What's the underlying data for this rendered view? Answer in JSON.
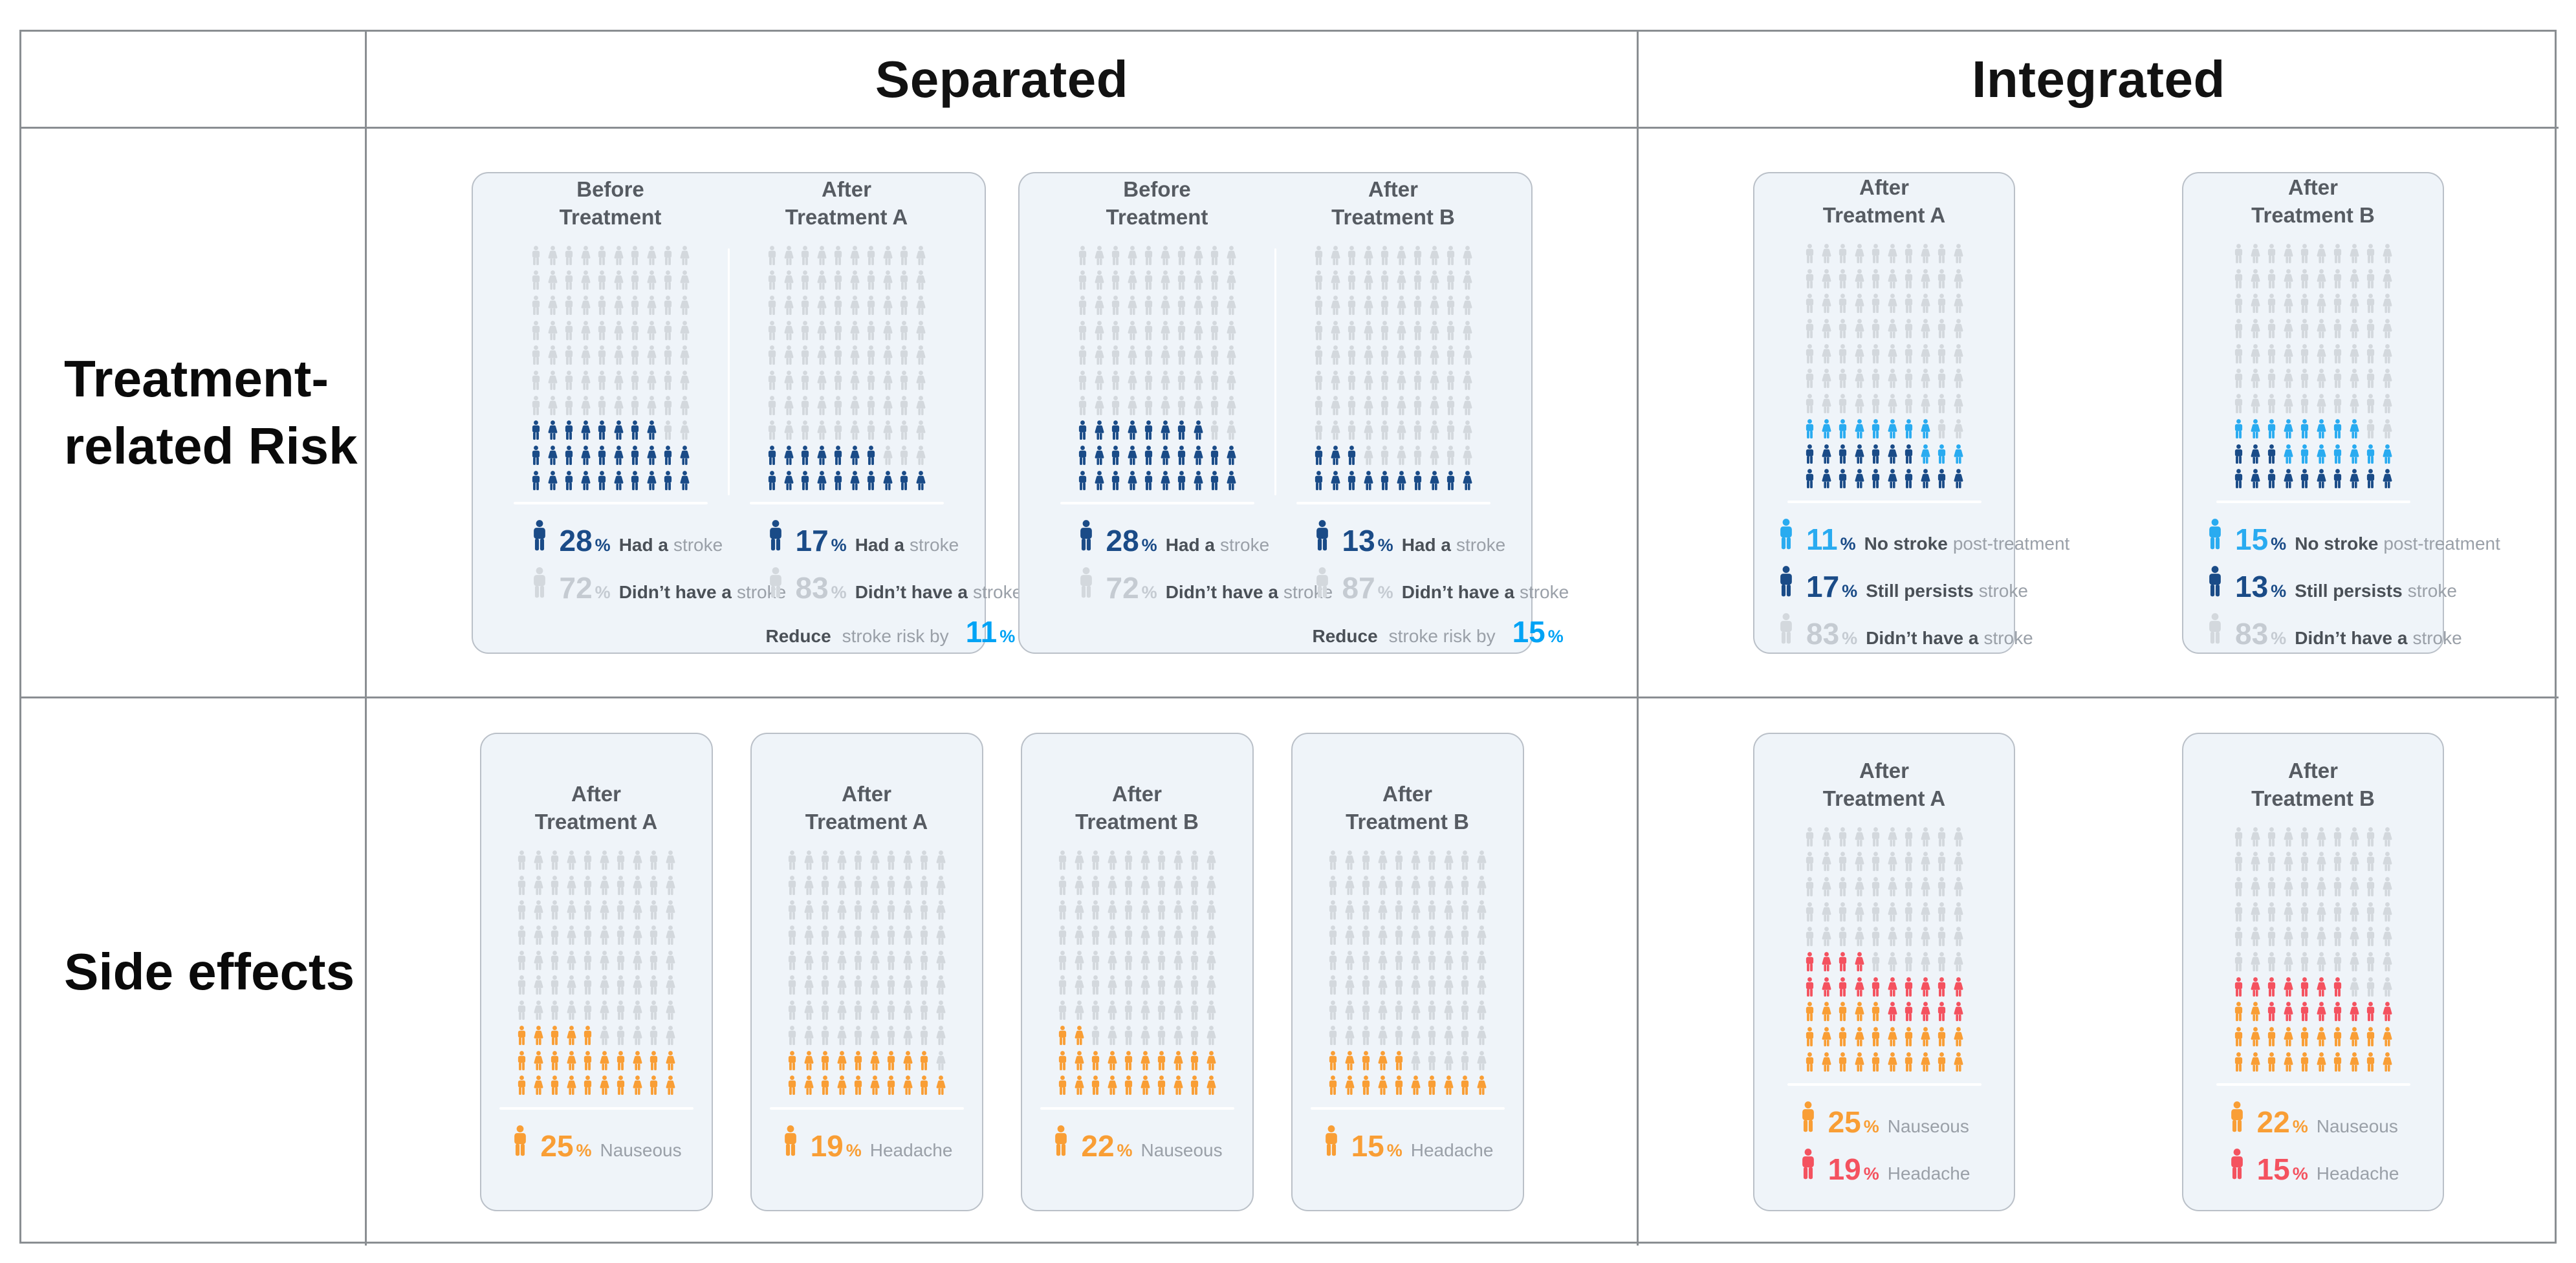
{
  "colors": {
    "navy": "#1A4B87",
    "lightblue": "#29ABF0",
    "cyan": "#00A3F5",
    "gray": "#D3D8DD",
    "grayNum": "#C5CBD2",
    "orange": "#F99E35",
    "red": "#F4525F",
    "boldText": "#4A5057",
    "lightText": "#9AA0A8",
    "panelTitle": "#565B62",
    "cardBg": "#EFF4F9",
    "cardBorder": "#BAC0C8",
    "tableLine": "#8A8E92"
  },
  "table": {
    "header": {
      "separated": "Separated",
      "integrated": "Integrated"
    },
    "row_labels": {
      "risk": [
        "Treatment-",
        "related Risk"
      ],
      "side": [
        "Side effects"
      ]
    }
  },
  "cards": {
    "risk_separated": [
      {
        "panels": [
          {
            "title": [
              "Before",
              "Treatment"
            ],
            "segments": [
              {
                "count": 28,
                "color": "navy"
              },
              {
                "count": 72,
                "color": "gray"
              }
            ],
            "legend": [
              {
                "icon_color": "navy",
                "num": "28",
                "num_color": "navy",
                "pct": "%",
                "pct_color": "navy",
                "bold": "Had a",
                "rest": "stroke"
              },
              {
                "icon_color": "gray",
                "num": "72",
                "num_color": "grayNum",
                "pct": "%",
                "pct_color": "grayNum",
                "bold": "Didn’t have a",
                "rest": "stroke"
              }
            ]
          },
          {
            "title": [
              "After",
              "Treatment A"
            ],
            "segments": [
              {
                "count": 17,
                "color": "navy"
              },
              {
                "count": 83,
                "color": "gray"
              }
            ],
            "legend": [
              {
                "icon_color": "navy",
                "num": "17",
                "num_color": "navy",
                "pct": "%",
                "pct_color": "navy",
                "bold": "Had a",
                "rest": "stroke"
              },
              {
                "icon_color": "gray",
                "num": "83",
                "num_color": "grayNum",
                "pct": "%",
                "pct_color": "grayNum",
                "bold": "Didn’t have a",
                "rest": "stroke"
              },
              {
                "reduce": true,
                "bold": "Reduce",
                "mid": "stroke risk by",
                "num": "11",
                "num_color": "cyan",
                "pct": "%",
                "pct_color": "cyan"
              }
            ]
          }
        ]
      },
      {
        "panels": [
          {
            "title": [
              "Before",
              "Treatment"
            ],
            "segments": [
              {
                "count": 28,
                "color": "navy"
              },
              {
                "count": 72,
                "color": "gray"
              }
            ],
            "legend": [
              {
                "icon_color": "navy",
                "num": "28",
                "num_color": "navy",
                "pct": "%",
                "pct_color": "navy",
                "bold": "Had a",
                "rest": "stroke"
              },
              {
                "icon_color": "gray",
                "num": "72",
                "num_color": "grayNum",
                "pct": "%",
                "pct_color": "grayNum",
                "bold": "Didn’t have a",
                "rest": "stroke"
              }
            ]
          },
          {
            "title": [
              "After",
              "Treatment B"
            ],
            "segments": [
              {
                "count": 13,
                "color": "navy"
              },
              {
                "count": 87,
                "color": "gray"
              }
            ],
            "legend": [
              {
                "icon_color": "navy",
                "num": "13",
                "num_color": "navy",
                "pct": "%",
                "pct_color": "navy",
                "bold": "Had a",
                "rest": "stroke"
              },
              {
                "icon_color": "gray",
                "num": "87",
                "num_color": "grayNum",
                "pct": "%",
                "pct_color": "grayNum",
                "bold": "Didn’t have a",
                "rest": "stroke"
              },
              {
                "reduce": true,
                "bold": "Reduce",
                "mid": "stroke risk by",
                "num": "15",
                "num_color": "cyan",
                "pct": "%",
                "pct_color": "cyan"
              }
            ]
          }
        ]
      }
    ],
    "risk_integrated": [
      {
        "title": [
          "After",
          "Treatment A"
        ],
        "segments": [
          {
            "count": 17,
            "color": "navy"
          },
          {
            "count": 11,
            "color": "lightblue"
          },
          {
            "count": 72,
            "color": "gray"
          }
        ],
        "legend": [
          {
            "icon_color": "lightblue",
            "num": "11",
            "num_color": "lightblue",
            "pct": "%",
            "pct_color": "navy",
            "bold": "No stroke",
            "rest": "post-treatment"
          },
          {
            "icon_color": "navy",
            "num": "17",
            "num_color": "navy",
            "pct": "%",
            "pct_color": "navy",
            "bold": "Still persists",
            "rest": "stroke"
          },
          {
            "icon_color": "gray",
            "num": "83",
            "num_color": "grayNum",
            "pct": "%",
            "pct_color": "grayNum",
            "bold": "Didn’t have a",
            "rest": "stroke"
          }
        ]
      },
      {
        "title": [
          "After",
          "Treatment B"
        ],
        "segments": [
          {
            "count": 13,
            "color": "navy"
          },
          {
            "count": 15,
            "color": "lightblue"
          },
          {
            "count": 72,
            "color": "gray"
          }
        ],
        "legend": [
          {
            "icon_color": "lightblue",
            "num": "15",
            "num_color": "lightblue",
            "pct": "%",
            "pct_color": "navy",
            "bold": "No stroke",
            "rest": "post-treatment"
          },
          {
            "icon_color": "navy",
            "num": "13",
            "num_color": "navy",
            "pct": "%",
            "pct_color": "navy",
            "bold": "Still persists",
            "rest": "stroke"
          },
          {
            "icon_color": "gray",
            "num": "83",
            "num_color": "grayNum",
            "pct": "%",
            "pct_color": "grayNum",
            "bold": "Didn’t have a",
            "rest": "stroke"
          }
        ]
      }
    ],
    "side_separated": [
      {
        "title": [
          "After",
          "Treatment A"
        ],
        "segments": [
          {
            "count": 25,
            "color": "orange"
          },
          {
            "count": 75,
            "color": "gray"
          }
        ],
        "legend": [
          {
            "icon_color": "orange",
            "num": "25",
            "num_color": "orange",
            "pct": "%",
            "pct_color": "orange",
            "bold": "",
            "rest": "Nauseous"
          }
        ]
      },
      {
        "title": [
          "After",
          "Treatment A"
        ],
        "segments": [
          {
            "count": 19,
            "color": "orange"
          },
          {
            "count": 81,
            "color": "gray"
          }
        ],
        "legend": [
          {
            "icon_color": "orange",
            "num": "19",
            "num_color": "orange",
            "pct": "%",
            "pct_color": "orange",
            "bold": "",
            "rest": "Headache"
          }
        ]
      },
      {
        "title": [
          "After",
          "Treatment B"
        ],
        "segments": [
          {
            "count": 22,
            "color": "orange"
          },
          {
            "count": 78,
            "color": "gray"
          }
        ],
        "legend": [
          {
            "icon_color": "orange",
            "num": "22",
            "num_color": "orange",
            "pct": "%",
            "pct_color": "orange",
            "bold": "",
            "rest": "Nauseous"
          }
        ]
      },
      {
        "title": [
          "After",
          "Treatment B"
        ],
        "segments": [
          {
            "count": 15,
            "color": "orange"
          },
          {
            "count": 85,
            "color": "gray"
          }
        ],
        "legend": [
          {
            "icon_color": "orange",
            "num": "15",
            "num_color": "orange",
            "pct": "%",
            "pct_color": "orange",
            "bold": "",
            "rest": "Headache"
          }
        ]
      }
    ],
    "side_integrated": [
      {
        "title": [
          "After",
          "Treatment A"
        ],
        "segments": [
          {
            "count": 25,
            "color": "orange"
          },
          {
            "count": 19,
            "color": "red"
          },
          {
            "count": 56,
            "color": "gray"
          }
        ],
        "legend": [
          {
            "icon_color": "orange",
            "num": "25",
            "num_color": "orange",
            "pct": "%",
            "pct_color": "orange",
            "bold": "",
            "rest": "Nauseous"
          },
          {
            "icon_color": "red",
            "num": "19",
            "num_color": "red",
            "pct": "%",
            "pct_color": "red",
            "bold": "",
            "rest": "Headache"
          }
        ]
      },
      {
        "title": [
          "After",
          "Treatment B"
        ],
        "segments": [
          {
            "count": 22,
            "color": "orange"
          },
          {
            "count": 15,
            "color": "red"
          },
          {
            "count": 63,
            "color": "gray"
          }
        ],
        "legend": [
          {
            "icon_color": "orange",
            "num": "22",
            "num_color": "orange",
            "pct": "%",
            "pct_color": "orange",
            "bold": "",
            "rest": "Nauseous"
          },
          {
            "icon_color": "red",
            "num": "15",
            "num_color": "red",
            "pct": "%",
            "pct_color": "red",
            "bold": "",
            "rest": "Headache"
          }
        ]
      }
    ]
  },
  "chart_data": [
    {
      "type": "pictograph",
      "section": "Separated — Treatment-related Risk",
      "card": 1,
      "panel": "Before Treatment",
      "total_icons": 100,
      "values": [
        {
          "label": "Had a stroke",
          "value": 28,
          "color": "#1A4B87"
        },
        {
          "label": "Didn’t have a stroke",
          "value": 72,
          "color": "#D3D8DD"
        }
      ]
    },
    {
      "type": "pictograph",
      "section": "Separated — Treatment-related Risk",
      "card": 1,
      "panel": "After Treatment A",
      "total_icons": 100,
      "values": [
        {
          "label": "Had a stroke",
          "value": 17,
          "color": "#1A4B87"
        },
        {
          "label": "Didn’t have a stroke",
          "value": 83,
          "color": "#D3D8DD"
        }
      ],
      "annotation": "Reduce stroke risk by 11 %"
    },
    {
      "type": "pictograph",
      "section": "Separated — Treatment-related Risk",
      "card": 2,
      "panel": "Before Treatment",
      "total_icons": 100,
      "values": [
        {
          "label": "Had a stroke",
          "value": 28,
          "color": "#1A4B87"
        },
        {
          "label": "Didn’t have a stroke",
          "value": 72,
          "color": "#D3D8DD"
        }
      ]
    },
    {
      "type": "pictograph",
      "section": "Separated — Treatment-related Risk",
      "card": 2,
      "panel": "After Treatment B",
      "total_icons": 100,
      "values": [
        {
          "label": "Had a stroke",
          "value": 13,
          "color": "#1A4B87"
        },
        {
          "label": "Didn’t have a stroke",
          "value": 87,
          "color": "#D3D8DD"
        }
      ],
      "annotation": "Reduce stroke risk by 15 %"
    },
    {
      "type": "pictograph",
      "section": "Integrated — Treatment-related Risk",
      "panel": "After Treatment A",
      "total_icons": 100,
      "values": [
        {
          "label": "No stroke post-treatment",
          "value": 11,
          "color": "#29ABF0"
        },
        {
          "label": "Still persists stroke",
          "value": 17,
          "color": "#1A4B87"
        },
        {
          "label": "Didn’t have a stroke",
          "value": 83,
          "color": "#D3D8DD"
        }
      ]
    },
    {
      "type": "pictograph",
      "section": "Integrated — Treatment-related Risk",
      "panel": "After Treatment B",
      "total_icons": 100,
      "values": [
        {
          "label": "No stroke post-treatment",
          "value": 15,
          "color": "#29ABF0"
        },
        {
          "label": "Still persists stroke",
          "value": 13,
          "color": "#1A4B87"
        },
        {
          "label": "Didn’t have a stroke",
          "value": 83,
          "color": "#D3D8DD"
        }
      ]
    },
    {
      "type": "pictograph",
      "section": "Separated — Side effects",
      "card": 1,
      "panel": "After Treatment A",
      "total_icons": 100,
      "values": [
        {
          "label": "Nauseous",
          "value": 25,
          "color": "#F99E35"
        }
      ]
    },
    {
      "type": "pictograph",
      "section": "Separated — Side effects",
      "card": 2,
      "panel": "After Treatment A",
      "total_icons": 100,
      "values": [
        {
          "label": "Headache",
          "value": 19,
          "color": "#F99E35"
        }
      ]
    },
    {
      "type": "pictograph",
      "section": "Separated — Side effects",
      "card": 3,
      "panel": "After Treatment B",
      "total_icons": 100,
      "values": [
        {
          "label": "Nauseous",
          "value": 22,
          "color": "#F99E35"
        }
      ]
    },
    {
      "type": "pictograph",
      "section": "Separated — Side effects",
      "card": 4,
      "panel": "After Treatment B",
      "total_icons": 100,
      "values": [
        {
          "label": "Headache",
          "value": 15,
          "color": "#F99E35"
        }
      ]
    },
    {
      "type": "pictograph",
      "section": "Integrated — Side effects",
      "panel": "After Treatment A",
      "total_icons": 100,
      "values": [
        {
          "label": "Nauseous",
          "value": 25,
          "color": "#F99E35"
        },
        {
          "label": "Headache",
          "value": 19,
          "color": "#F4525F"
        }
      ]
    },
    {
      "type": "pictograph",
      "section": "Integrated — Side effects",
      "panel": "After Treatment B",
      "total_icons": 100,
      "values": [
        {
          "label": "Nauseous",
          "value": 22,
          "color": "#F99E35"
        },
        {
          "label": "Headache",
          "value": 15,
          "color": "#F4525F"
        }
      ]
    }
  ]
}
